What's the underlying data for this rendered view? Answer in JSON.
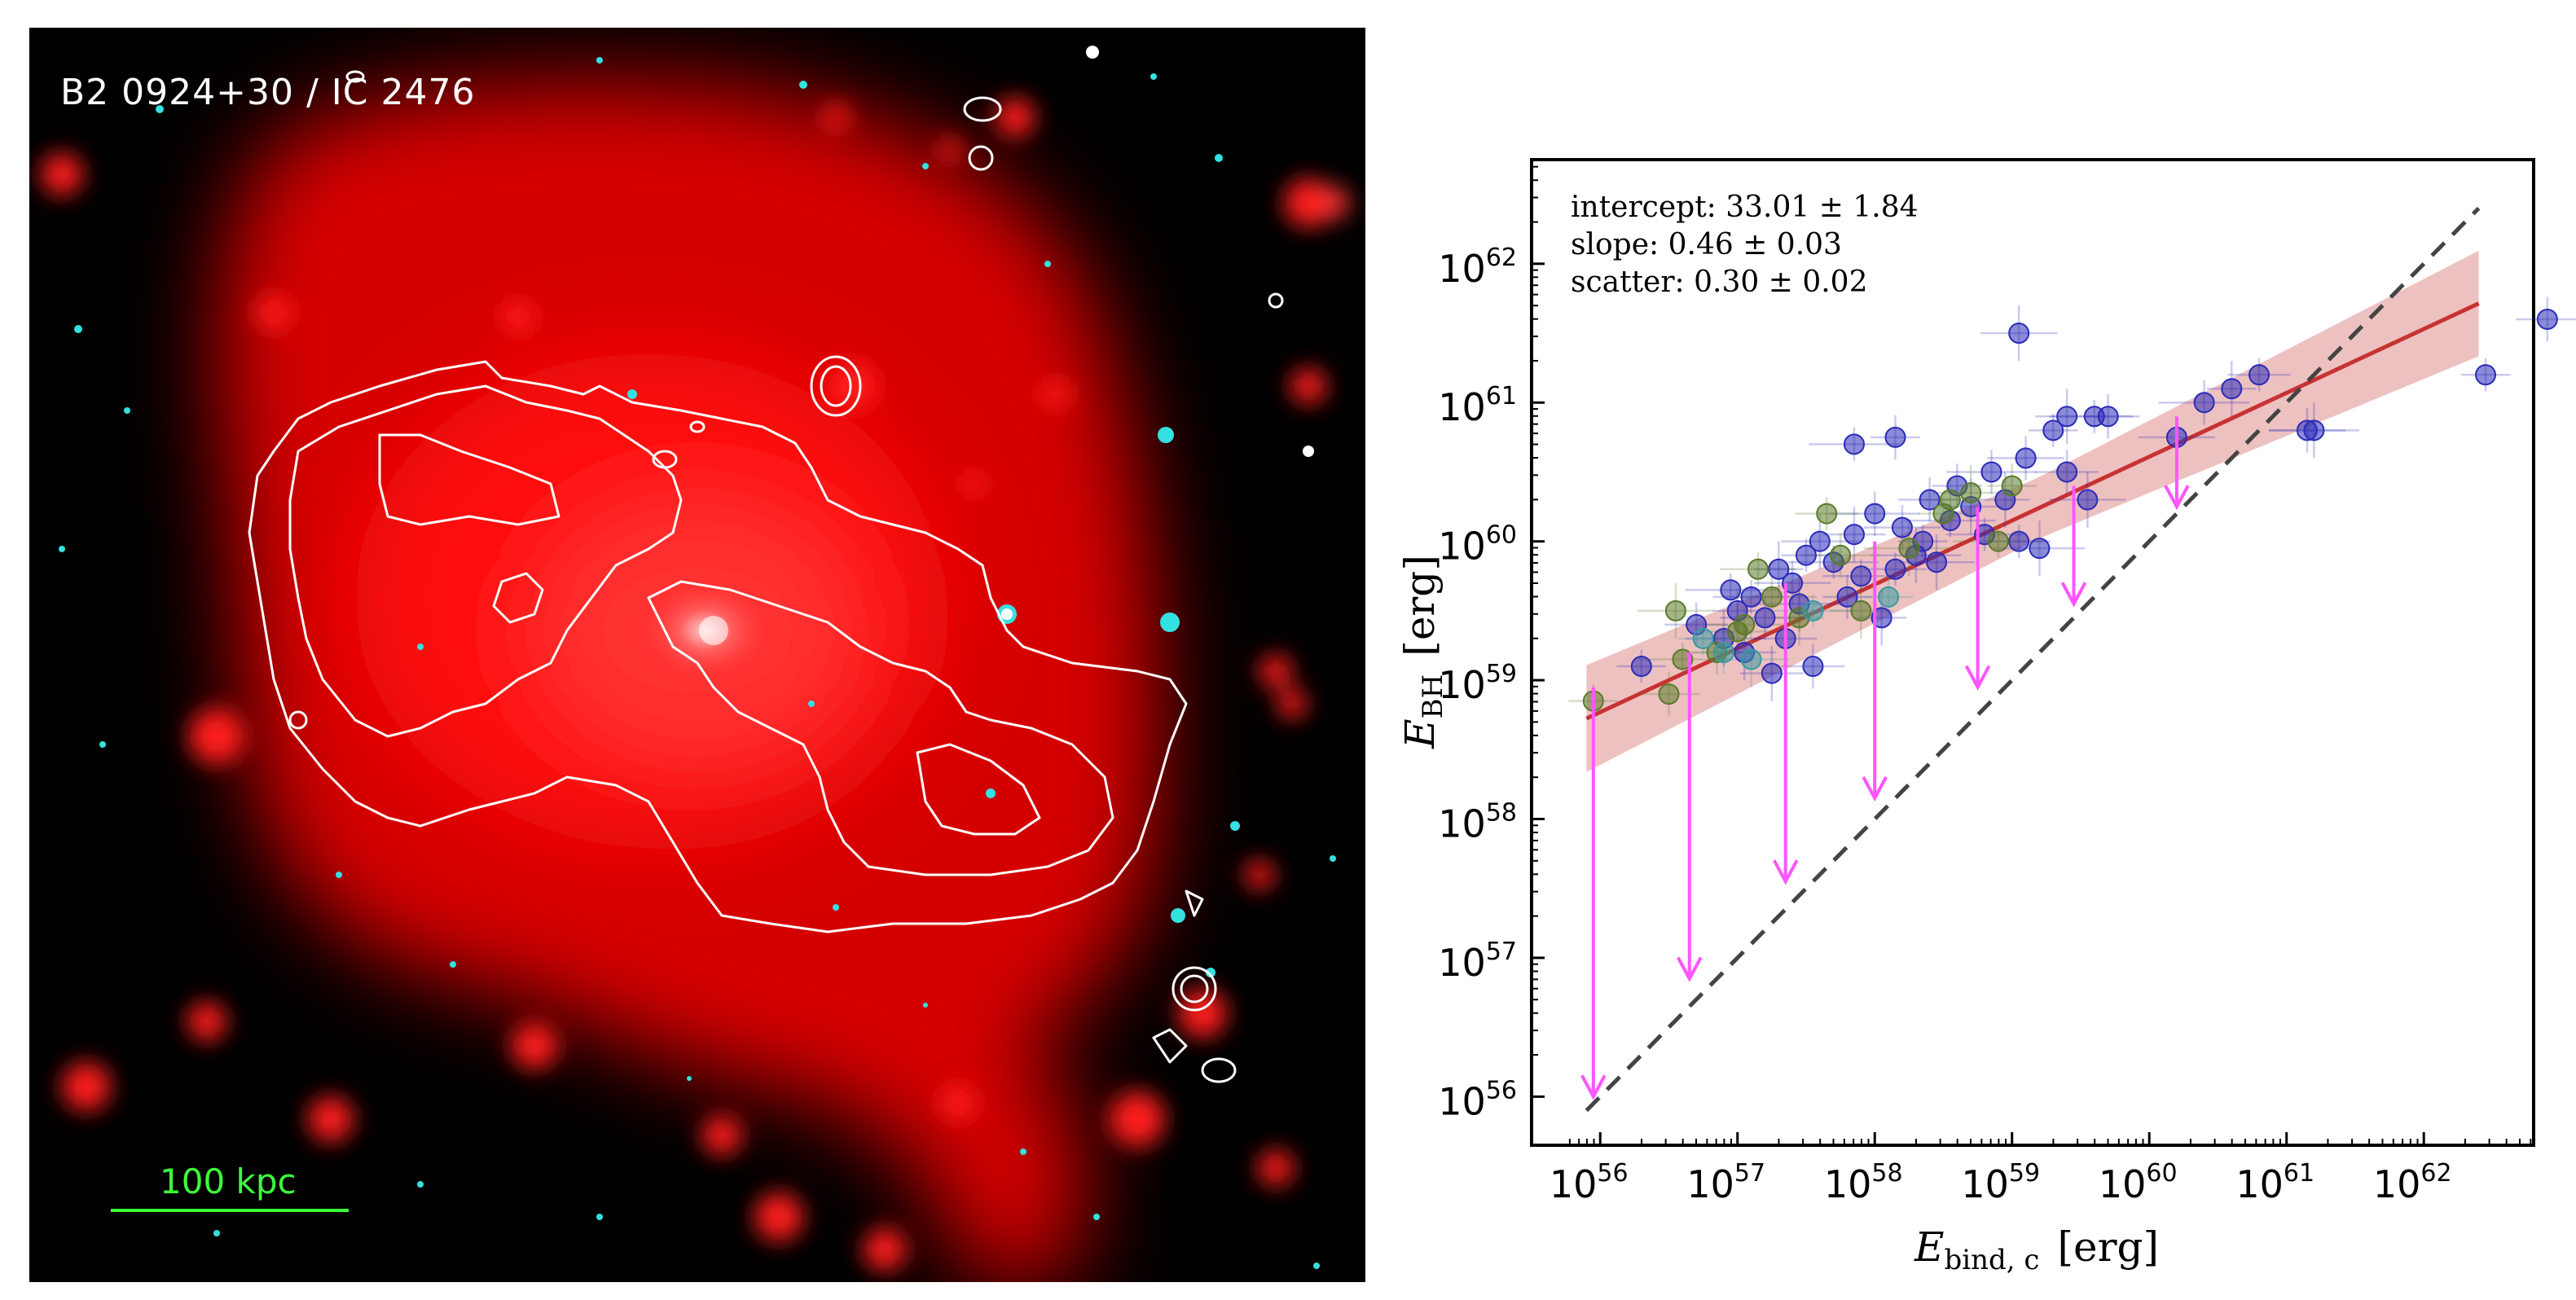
{
  "left_image": {
    "title": "B2 0924+30 / IC 2476",
    "scale_bar_label": "100 kpc",
    "colors": {
      "background": "#000000",
      "xray": "#ff1a1a",
      "contour": "#ffffff",
      "scale": "#3cff3c",
      "stars": "#34e0e0"
    }
  },
  "chart_data": {
    "type": "scatter",
    "xlabel_main": "E",
    "xlabel_sub": "bind, c",
    "xlabel_unit": "[erg]",
    "ylabel_main": "E",
    "ylabel_sub": "BH",
    "ylabel_unit": "[erg]",
    "x_scale": "log",
    "y_scale": "log",
    "xlim_log10": [
      55.5,
      62.8
    ],
    "ylim_log10": [
      55.65,
      62.75
    ],
    "x_ticks": [
      {
        "exp": 56,
        "base": "10",
        "sup": "56"
      },
      {
        "exp": 57,
        "base": "10",
        "sup": "57"
      },
      {
        "exp": 58,
        "base": "10",
        "sup": "58"
      },
      {
        "exp": 59,
        "base": "10",
        "sup": "59"
      },
      {
        "exp": 60,
        "base": "10",
        "sup": "60"
      },
      {
        "exp": 61,
        "base": "10",
        "sup": "61"
      },
      {
        "exp": 62,
        "base": "10",
        "sup": "62"
      }
    ],
    "y_ticks": [
      {
        "exp": 56,
        "base": "10",
        "sup": "56"
      },
      {
        "exp": 57,
        "base": "10",
        "sup": "57"
      },
      {
        "exp": 58,
        "base": "10",
        "sup": "58"
      },
      {
        "exp": 59,
        "base": "10",
        "sup": "59"
      },
      {
        "exp": 60,
        "base": "10",
        "sup": "60"
      },
      {
        "exp": 61,
        "base": "10",
        "sup": "61"
      },
      {
        "exp": 62,
        "base": "10",
        "sup": "62"
      }
    ],
    "annotations": [
      {
        "label": "intercept",
        "value": "33.01 ± 1.84"
      },
      {
        "label": "slope",
        "value": "0.46 ± 0.03"
      },
      {
        "label": "scatter",
        "value": "0.30 ± 0.02"
      }
    ],
    "fit": {
      "intercept": 33.01,
      "slope": 0.46,
      "scatter": 0.3,
      "x_range_log10": [
        55.9,
        62.4
      ],
      "color": "#c83232"
    },
    "one_to_one": {
      "x_range_log10": [
        55.9,
        62.4
      ],
      "color": "#444444"
    },
    "series": [
      {
        "name": "blue",
        "color": "#2b2bb8",
        "points": [
          [
            56.3,
            59.1
          ],
          [
            56.7,
            59.4
          ],
          [
            56.9,
            59.3
          ],
          [
            56.95,
            59.65
          ],
          [
            57.0,
            59.5
          ],
          [
            57.05,
            59.2
          ],
          [
            57.1,
            59.6
          ],
          [
            57.2,
            59.45
          ],
          [
            57.3,
            59.8
          ],
          [
            57.35,
            59.3
          ],
          [
            57.4,
            59.7
          ],
          [
            57.45,
            59.55
          ],
          [
            57.5,
            59.9
          ],
          [
            57.55,
            59.1
          ],
          [
            57.6,
            60.0
          ],
          [
            57.7,
            59.85
          ],
          [
            57.8,
            59.6
          ],
          [
            57.85,
            60.05
          ],
          [
            57.9,
            59.75
          ],
          [
            58.0,
            60.2
          ],
          [
            58.05,
            59.45
          ],
          [
            58.15,
            59.8
          ],
          [
            58.2,
            60.1
          ],
          [
            58.3,
            59.9
          ],
          [
            58.35,
            60.0
          ],
          [
            58.4,
            60.3
          ],
          [
            58.45,
            59.85
          ],
          [
            58.55,
            60.15
          ],
          [
            58.6,
            60.4
          ],
          [
            58.7,
            60.25
          ],
          [
            58.8,
            60.05
          ],
          [
            58.85,
            60.5
          ],
          [
            58.95,
            60.3
          ],
          [
            59.05,
            60.0
          ],
          [
            59.1,
            60.6
          ],
          [
            59.2,
            59.95
          ],
          [
            59.3,
            60.8
          ],
          [
            59.4,
            60.5
          ],
          [
            59.55,
            60.3
          ],
          [
            59.6,
            60.9
          ],
          [
            59.7,
            60.9
          ],
          [
            59.4,
            60.9
          ],
          [
            60.2,
            60.75
          ],
          [
            60.4,
            61.0
          ],
          [
            60.6,
            61.1
          ],
          [
            60.8,
            61.2
          ],
          [
            61.15,
            60.8
          ],
          [
            61.2,
            60.8
          ],
          [
            62.45,
            61.2
          ],
          [
            62.9,
            61.6
          ],
          [
            59.05,
            61.5
          ],
          [
            57.85,
            60.7
          ],
          [
            58.15,
            60.75
          ],
          [
            57.25,
            59.05
          ]
        ]
      },
      {
        "name": "olive",
        "color": "#5a7a2a",
        "points": [
          [
            55.95,
            58.85
          ],
          [
            56.5,
            58.9
          ],
          [
            56.55,
            59.5
          ],
          [
            56.6,
            59.15
          ],
          [
            56.85,
            59.2
          ],
          [
            57.0,
            59.35
          ],
          [
            57.15,
            59.8
          ],
          [
            57.25,
            59.6
          ],
          [
            57.45,
            59.45
          ],
          [
            57.65,
            60.2
          ],
          [
            57.75,
            59.9
          ],
          [
            58.25,
            59.95
          ],
          [
            58.5,
            60.2
          ],
          [
            58.55,
            60.3
          ],
          [
            58.7,
            60.35
          ],
          [
            58.9,
            60.0
          ],
          [
            59.0,
            60.4
          ],
          [
            57.9,
            59.5
          ],
          [
            57.05,
            59.4
          ]
        ]
      },
      {
        "name": "teal",
        "color": "#3a9aa0",
        "points": [
          [
            56.75,
            59.3
          ],
          [
            56.9,
            59.2
          ],
          [
            57.1,
            59.15
          ],
          [
            57.55,
            59.5
          ],
          [
            58.1,
            59.6
          ]
        ]
      }
    ],
    "upper_limits": {
      "color": "#ff55ff",
      "arrows": [
        {
          "x": 55.95,
          "y_from": 58.95,
          "y_to": 56.0
        },
        {
          "x": 56.65,
          "y_from": 59.2,
          "y_to": 56.85
        },
        {
          "x": 57.35,
          "y_from": 59.7,
          "y_to": 57.55
        },
        {
          "x": 58.0,
          "y_from": 60.0,
          "y_to": 58.15
        },
        {
          "x": 58.75,
          "y_from": 60.25,
          "y_to": 58.95
        },
        {
          "x": 59.45,
          "y_from": 60.4,
          "y_to": 59.55
        },
        {
          "x": 60.2,
          "y_from": 60.9,
          "y_to": 60.25
        }
      ]
    }
  }
}
